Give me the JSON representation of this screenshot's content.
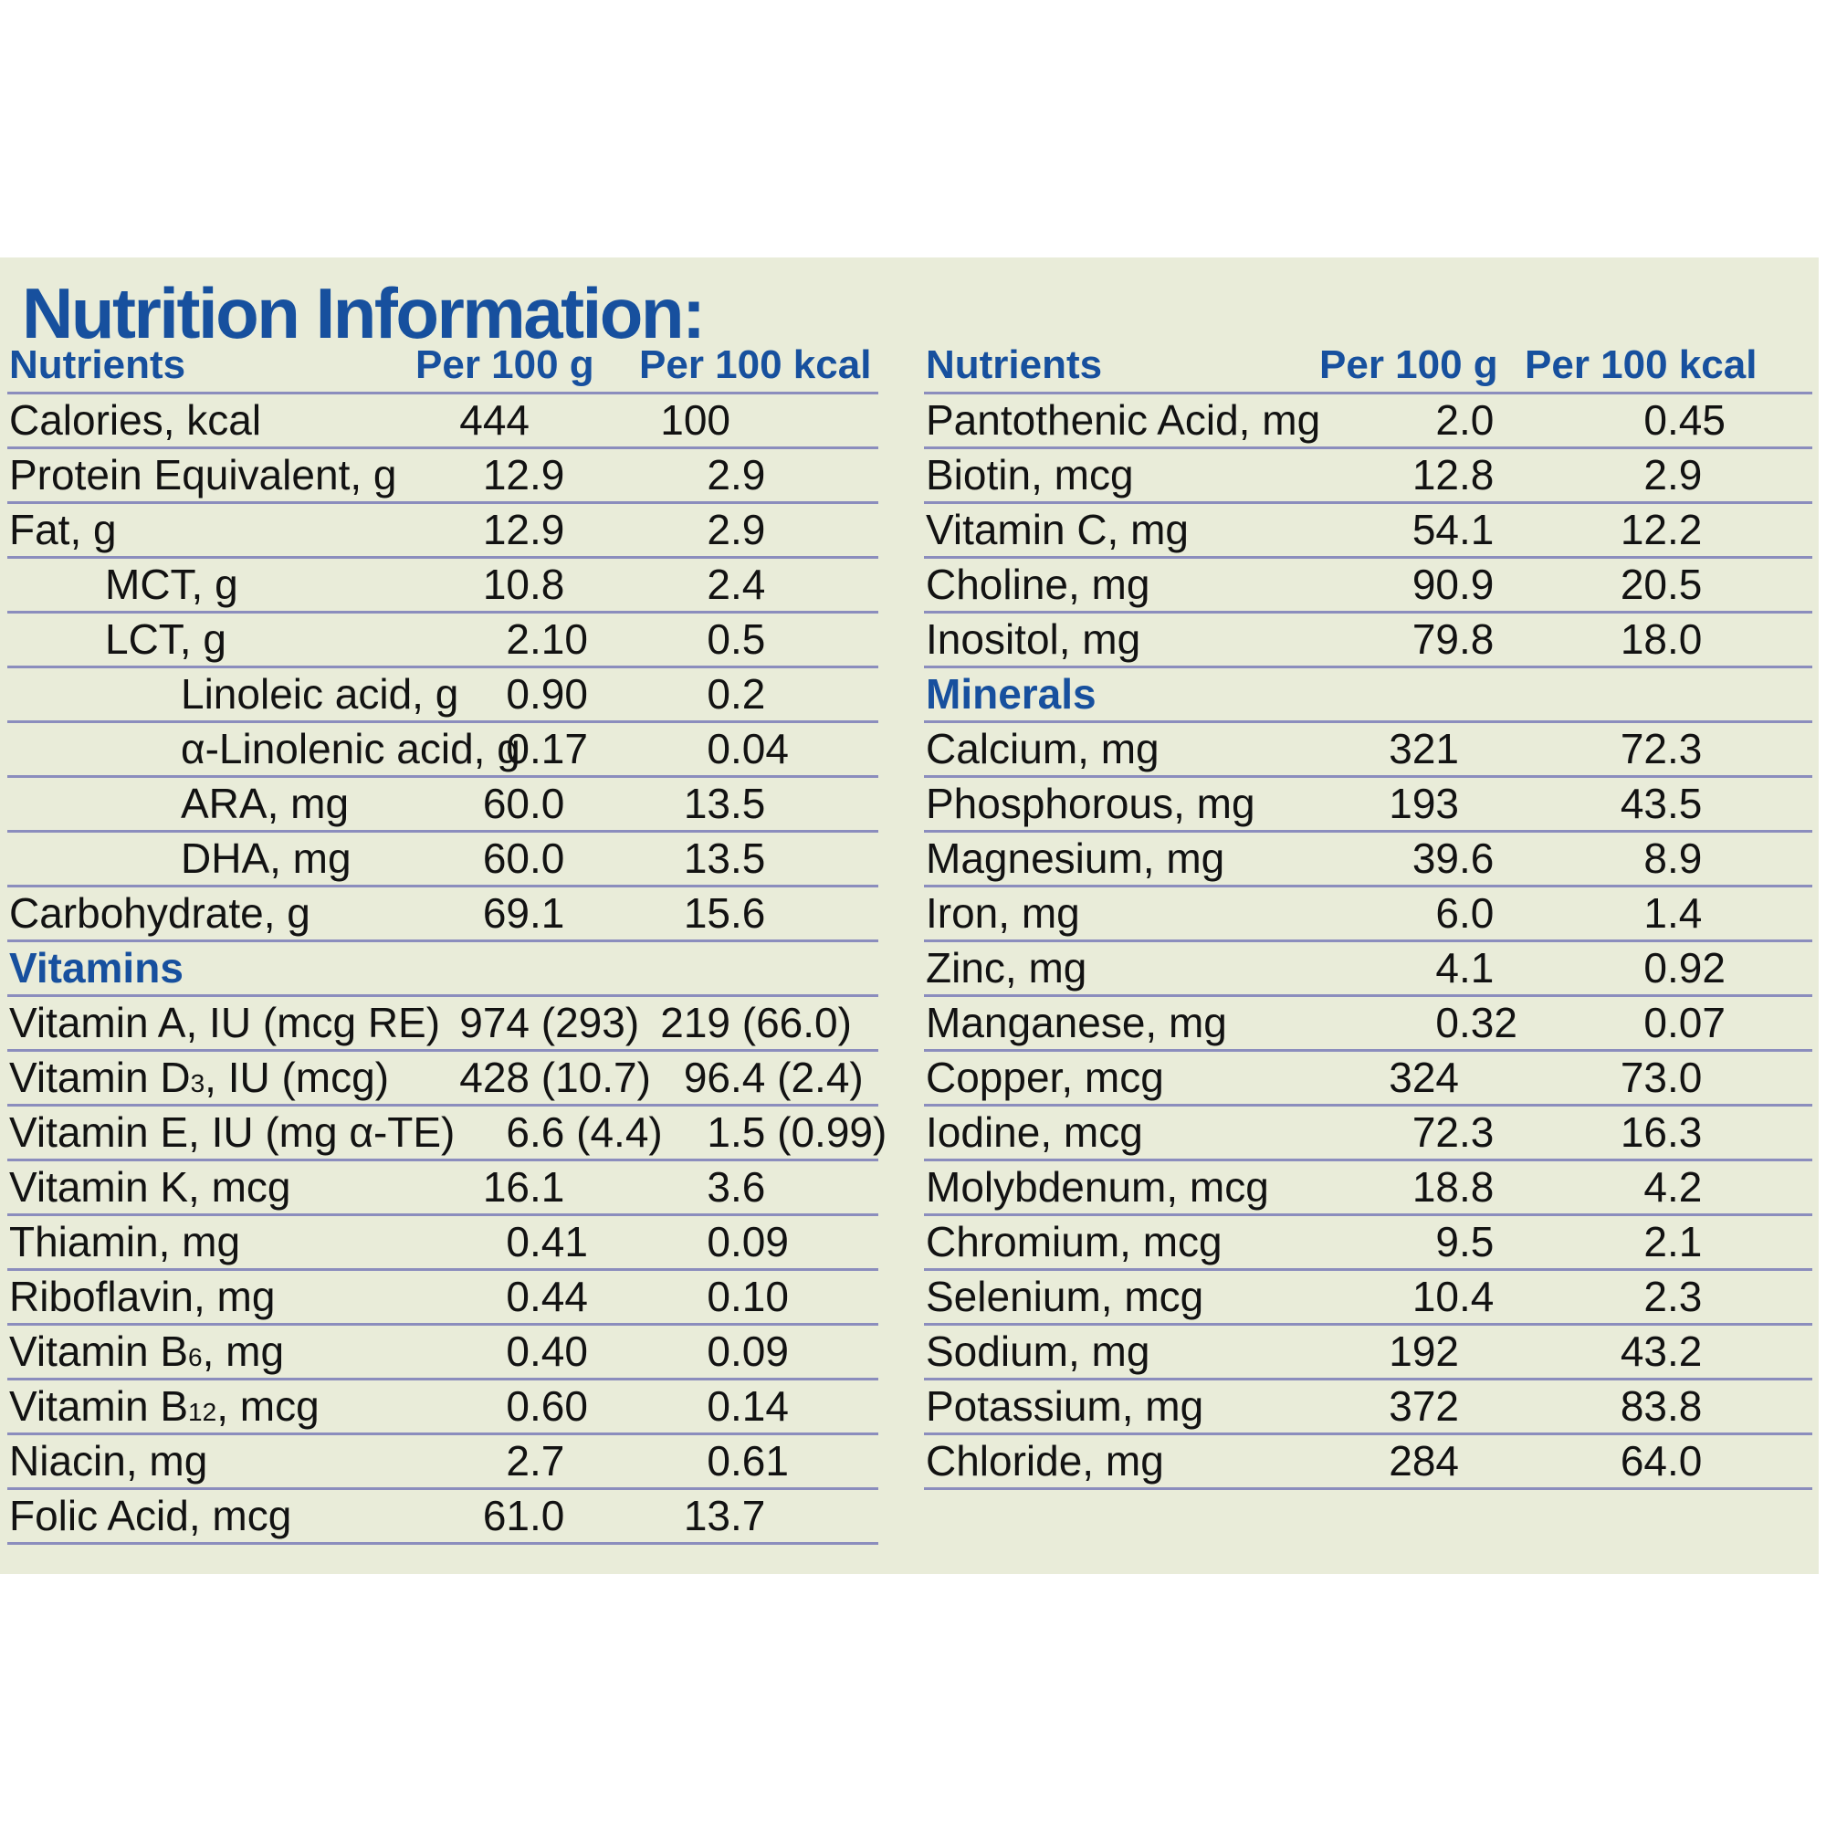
{
  "title": "Nutrition Information:",
  "colors": {
    "accent_blue": "#17509e",
    "panel_background": "#e9ecd9",
    "rule_line": "#8b8dbd",
    "text": "#121212",
    "page_background": "#ffffff"
  },
  "tables": {
    "left": {
      "headers": {
        "nutrients": "Nutrients",
        "per100g": "Per 100 g",
        "per100kcal": "Per 100 kcal"
      },
      "rows": [
        {
          "label": "Calories, kcal",
          "indent": 0,
          "g": "444",
          "kcal": "100"
        },
        {
          "label": "Protein Equivalent, g",
          "indent": 0,
          "g": "12.9",
          "kcal": "2.9"
        },
        {
          "label": "Fat, g",
          "indent": 0,
          "g": "12.9",
          "kcal": "2.9"
        },
        {
          "label": "MCT, g",
          "indent": 1,
          "g": "10.8",
          "kcal": "2.4"
        },
        {
          "label": "LCT, g",
          "indent": 1,
          "g": "2.10",
          "kcal": "0.5"
        },
        {
          "label": "Linoleic acid, g",
          "indent": 2,
          "g": "0.90",
          "kcal": "0.2"
        },
        {
          "label": "α-Linolenic acid, g",
          "indent": 2,
          "g": "0.17",
          "kcal": "0.04"
        },
        {
          "label": "ARA, mg",
          "indent": 2,
          "g": "60.0",
          "kcal": "13.5"
        },
        {
          "label": "DHA, mg",
          "indent": 2,
          "g": "60.0",
          "kcal": "13.5"
        },
        {
          "label": "Carbohydrate, g",
          "indent": 0,
          "g": "69.1",
          "kcal": "15.6"
        },
        {
          "type": "section",
          "label": "Vitamins"
        },
        {
          "label": "Vitamin A, IU (mcg RE)",
          "indent": 0,
          "g": "974 (293)",
          "kcal": "219 (66.0)"
        },
        {
          "pre": "Vitamin D",
          "sub": "3",
          "post": ", IU (mcg)",
          "indent": 0,
          "g": "428 (10.7)",
          "kcal": "96.4 (2.4)"
        },
        {
          "label": "Vitamin E, IU (mg α-TE)",
          "indent": 0,
          "g": "6.6 (4.4)",
          "kcal": "1.5 (0.99)"
        },
        {
          "label": "Vitamin K, mcg",
          "indent": 0,
          "g": "16.1",
          "kcal": "3.6"
        },
        {
          "label": "Thiamin, mg",
          "indent": 0,
          "g": "0.41",
          "kcal": "0.09"
        },
        {
          "label": "Riboflavin, mg",
          "indent": 0,
          "g": "0.44",
          "kcal": "0.10"
        },
        {
          "pre": "Vitamin B",
          "sub": "6",
          "post": ", mg",
          "indent": 0,
          "g": "0.40",
          "kcal": "0.09"
        },
        {
          "pre": "Vitamin B",
          "sub": "12",
          "post": ", mcg",
          "indent": 0,
          "g": "0.60",
          "kcal": "0.14"
        },
        {
          "label": "Niacin, mg",
          "indent": 0,
          "g": "2.7",
          "kcal": "0.61"
        },
        {
          "label": "Folic Acid, mcg",
          "indent": 0,
          "g": "61.0",
          "kcal": "13.7"
        }
      ]
    },
    "right": {
      "headers": {
        "nutrients": "Nutrients",
        "per100g": "Per 100 g",
        "per100kcal": "Per 100 kcal"
      },
      "rows": [
        {
          "label": "Pantothenic Acid, mg",
          "indent": 0,
          "g": "2.0",
          "kcal": "0.45"
        },
        {
          "label": "Biotin, mcg",
          "indent": 0,
          "g": "12.8",
          "kcal": "2.9"
        },
        {
          "label": "Vitamin C, mg",
          "indent": 0,
          "g": "54.1",
          "kcal": "12.2"
        },
        {
          "label": "Choline, mg",
          "indent": 0,
          "g": "90.9",
          "kcal": "20.5"
        },
        {
          "label": "Inositol, mg",
          "indent": 0,
          "g": "79.8",
          "kcal": "18.0"
        },
        {
          "type": "section",
          "label": "Minerals"
        },
        {
          "label": "Calcium, mg",
          "indent": 0,
          "g": "321",
          "kcal": "72.3"
        },
        {
          "label": "Phosphorous, mg",
          "indent": 0,
          "g": "193",
          "kcal": "43.5"
        },
        {
          "label": "Magnesium, mg",
          "indent": 0,
          "g": "39.6",
          "kcal": "8.9"
        },
        {
          "label": "Iron, mg",
          "indent": 0,
          "g": "6.0",
          "kcal": "1.4"
        },
        {
          "label": "Zinc, mg",
          "indent": 0,
          "g": "4.1",
          "kcal": "0.92"
        },
        {
          "label": "Manganese, mg",
          "indent": 0,
          "g": "0.32",
          "kcal": "0.07"
        },
        {
          "label": "Copper, mcg",
          "indent": 0,
          "g": "324",
          "kcal": "73.0"
        },
        {
          "label": "Iodine, mcg",
          "indent": 0,
          "g": "72.3",
          "kcal": "16.3"
        },
        {
          "label": "Molybdenum, mcg",
          "indent": 0,
          "g": "18.8",
          "kcal": "4.2"
        },
        {
          "label": "Chromium, mcg",
          "indent": 0,
          "g": "9.5",
          "kcal": "2.1"
        },
        {
          "label": "Selenium, mcg",
          "indent": 0,
          "g": "10.4",
          "kcal": "2.3"
        },
        {
          "label": "Sodium, mg",
          "indent": 0,
          "g": "192",
          "kcal": "43.2"
        },
        {
          "label": "Potassium, mg",
          "indent": 0,
          "g": "372",
          "kcal": "83.8"
        },
        {
          "label": "Chloride, mg",
          "indent": 0,
          "g": "284",
          "kcal": "64.0"
        }
      ]
    }
  }
}
